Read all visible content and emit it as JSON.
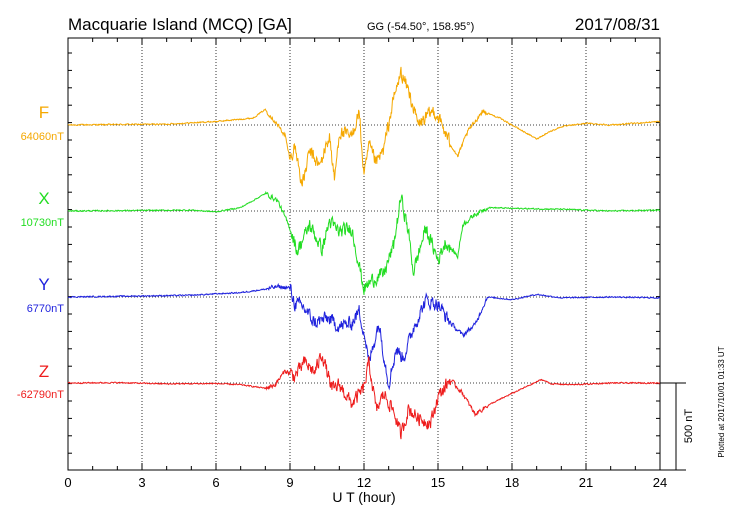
{
  "header": {
    "station": "Macquarie Island (MCQ)  [GA]",
    "coords": "GG (-54.50°, 158.95°)",
    "date": "2017/08/31"
  },
  "footer": {
    "plotted": "Plotted at 2017/10/01 01:33 UT"
  },
  "chart_data": {
    "type": "line",
    "xlabel": "U T (hour)",
    "xlim": [
      0,
      24
    ],
    "xticks": [
      "0",
      "3",
      "6",
      "9",
      "12",
      "15",
      "18",
      "21",
      "24"
    ],
    "grid": true,
    "scale_bar": {
      "label": "500 nT",
      "value_nT": 500
    },
    "series": [
      {
        "name": "F",
        "baseline_label": "64060nT",
        "baseline_nT": 64060,
        "color": "#f5a800",
        "points": [
          [
            0,
            0
          ],
          [
            2,
            3
          ],
          [
            4,
            5
          ],
          [
            6,
            20
          ],
          [
            7.5,
            40
          ],
          [
            8,
            90
          ],
          [
            8.4,
            20
          ],
          [
            8.8,
            -60
          ],
          [
            9,
            -200
          ],
          [
            9.2,
            -120
          ],
          [
            9.5,
            -350
          ],
          [
            9.8,
            -150
          ],
          [
            10.2,
            -240
          ],
          [
            10.6,
            -60
          ],
          [
            10.8,
            -320
          ],
          [
            11,
            -40
          ],
          [
            11.5,
            -70
          ],
          [
            11.8,
            80
          ],
          [
            12,
            -300
          ],
          [
            12.2,
            -120
          ],
          [
            12.5,
            -220
          ],
          [
            12.8,
            -140
          ],
          [
            13.2,
            150
          ],
          [
            13.5,
            300
          ],
          [
            13.8,
            200
          ],
          [
            14.2,
            0
          ],
          [
            14.8,
            80
          ],
          [
            15,
            50
          ],
          [
            15.4,
            -80
          ],
          [
            15.8,
            -180
          ],
          [
            16.2,
            -40
          ],
          [
            16.8,
            80
          ],
          [
            17.5,
            40
          ],
          [
            18.5,
            -40
          ],
          [
            19,
            -80
          ],
          [
            19.5,
            -40
          ],
          [
            20,
            -10
          ],
          [
            21,
            10
          ],
          [
            22,
            0
          ],
          [
            24,
            20
          ]
        ]
      },
      {
        "name": "X",
        "baseline_label": "10730nT",
        "baseline_nT": 10730,
        "color": "#22dd22",
        "points": [
          [
            0,
            0
          ],
          [
            3,
            3
          ],
          [
            5,
            5
          ],
          [
            6,
            -5
          ],
          [
            7,
            20
          ],
          [
            8,
            100
          ],
          [
            8.5,
            60
          ],
          [
            9,
            -100
          ],
          [
            9.3,
            -230
          ],
          [
            9.8,
            -80
          ],
          [
            10.3,
            -220
          ],
          [
            10.6,
            -60
          ],
          [
            11,
            -120
          ],
          [
            11.5,
            -100
          ],
          [
            12,
            -450
          ],
          [
            12.3,
            -400
          ],
          [
            12.8,
            -360
          ],
          [
            13.2,
            -200
          ],
          [
            13.5,
            80
          ],
          [
            13.8,
            -120
          ],
          [
            14,
            -350
          ],
          [
            14.5,
            -100
          ],
          [
            15,
            -280
          ],
          [
            15.3,
            -180
          ],
          [
            15.8,
            -260
          ],
          [
            16,
            -80
          ],
          [
            16.5,
            -20
          ],
          [
            17,
            20
          ],
          [
            18,
            15
          ],
          [
            20,
            10
          ],
          [
            22,
            0
          ],
          [
            24,
            5
          ]
        ]
      },
      {
        "name": "Y",
        "baseline_label": "6770nT",
        "baseline_nT": 6770,
        "color": "#1f22dd",
        "points": [
          [
            0,
            0
          ],
          [
            3,
            6
          ],
          [
            5,
            10
          ],
          [
            6,
            18
          ],
          [
            7,
            25
          ],
          [
            8,
            45
          ],
          [
            8.5,
            60
          ],
          [
            9,
            50
          ],
          [
            9.2,
            -40
          ],
          [
            9.5,
            -50
          ],
          [
            10,
            -150
          ],
          [
            10.5,
            -120
          ],
          [
            11,
            -170
          ],
          [
            11.5,
            -150
          ],
          [
            11.8,
            -80
          ],
          [
            12,
            -200
          ],
          [
            12.2,
            -380
          ],
          [
            12.6,
            -150
          ],
          [
            13,
            -500
          ],
          [
            13.3,
            -300
          ],
          [
            13.6,
            -350
          ],
          [
            14,
            -180
          ],
          [
            14.5,
            -20
          ],
          [
            15,
            -40
          ],
          [
            15.5,
            -150
          ],
          [
            16,
            -220
          ],
          [
            16.5,
            -160
          ],
          [
            17,
            0
          ],
          [
            18,
            -15
          ],
          [
            19,
            15
          ],
          [
            20,
            -5
          ],
          [
            22,
            0
          ],
          [
            24,
            -5
          ]
        ]
      },
      {
        "name": "Z",
        "baseline_label": "-62790nT",
        "baseline_nT": -62790,
        "color": "#ee1c1c",
        "points": [
          [
            0,
            0
          ],
          [
            2,
            2
          ],
          [
            4,
            -5
          ],
          [
            6,
            -3
          ],
          [
            7,
            -10
          ],
          [
            8,
            -30
          ],
          [
            8.4,
            -10
          ],
          [
            8.8,
            70
          ],
          [
            9.2,
            40
          ],
          [
            9.6,
            120
          ],
          [
            10,
            60
          ],
          [
            10.3,
            170
          ],
          [
            10.7,
            -40
          ],
          [
            11,
            -10
          ],
          [
            11.5,
            -120
          ],
          [
            12,
            -30
          ],
          [
            12.2,
            120
          ],
          [
            12.5,
            -160
          ],
          [
            12.8,
            -60
          ],
          [
            13.2,
            -160
          ],
          [
            13.5,
            -300
          ],
          [
            13.8,
            -150
          ],
          [
            14.2,
            -200
          ],
          [
            14.7,
            -230
          ],
          [
            15,
            -80
          ],
          [
            15.5,
            20
          ],
          [
            16,
            -60
          ],
          [
            16.5,
            -180
          ],
          [
            17,
            -130
          ],
          [
            18,
            -60
          ],
          [
            19.2,
            20
          ],
          [
            19.6,
            -5
          ],
          [
            20.5,
            -10
          ],
          [
            22,
            0
          ],
          [
            24,
            0
          ]
        ]
      }
    ]
  }
}
